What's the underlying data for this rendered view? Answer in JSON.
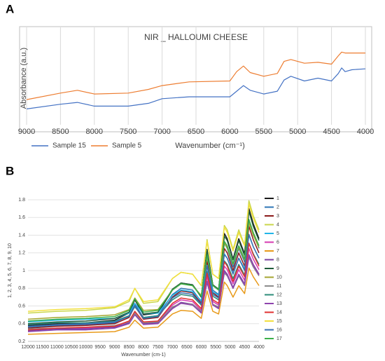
{
  "chart_data": [
    {
      "type": "line",
      "panel_label": "A",
      "title": "NIR _ HALLOUMI CHEESE",
      "xlabel": "Wavenumber (cm⁻¹)",
      "ylabel": "Absorbance (a.u.)",
      "x": [
        9000,
        8500,
        8250,
        8000,
        7500,
        7200,
        7000,
        6600,
        6000,
        5900,
        5800,
        5700,
        5500,
        5300,
        5200,
        5100,
        4900,
        4700,
        4500,
        4400,
        4350,
        4300,
        4200,
        4000
      ],
      "xlim": [
        9000,
        4000
      ],
      "xticks": [
        9000,
        8500,
        8000,
        7500,
        7000,
        6500,
        6000,
        5500,
        5000,
        4500,
        4000
      ],
      "ylim": [
        0,
        1
      ],
      "grid": true,
      "legend": "bottom",
      "series": [
        {
          "name": "Sample 15",
          "color": "#4472c4",
          "values": [
            0.17,
            0.22,
            0.24,
            0.2,
            0.2,
            0.23,
            0.28,
            0.3,
            0.3,
            0.36,
            0.42,
            0.37,
            0.33,
            0.36,
            0.48,
            0.52,
            0.47,
            0.5,
            0.47,
            0.55,
            0.61,
            0.57,
            0.59,
            0.6
          ]
        },
        {
          "name": "Sample 5",
          "color": "#ed7d31",
          "values": [
            0.27,
            0.34,
            0.37,
            0.33,
            0.34,
            0.38,
            0.42,
            0.46,
            0.47,
            0.57,
            0.63,
            0.56,
            0.52,
            0.55,
            0.68,
            0.7,
            0.66,
            0.67,
            0.65,
            0.74,
            0.78,
            0.77,
            0.77,
            0.77
          ]
        }
      ]
    },
    {
      "type": "line",
      "panel_label": "B",
      "xlabel": "Wavenumber (cm-1)",
      "ylabel": "1, 2, 3, 4, 5, 6, 7, 8, 9, 10",
      "x": [
        12000,
        11000,
        10000,
        9000,
        8500,
        8300,
        8000,
        7500,
        7000,
        6700,
        6300,
        6000,
        5800,
        5600,
        5400,
        5200,
        5100,
        4900,
        4700,
        4500,
        4350,
        4200,
        4000
      ],
      "xlim": [
        12000,
        4000
      ],
      "xticks": [
        12000,
        11500,
        11000,
        10500,
        10000,
        9500,
        9000,
        8500,
        8000,
        7500,
        7000,
        6500,
        6000,
        5500,
        5000,
        4500,
        4000
      ],
      "ylim": [
        0.2,
        1.8
      ],
      "yticks": [
        0.2,
        0.4,
        0.6,
        0.8,
        1,
        1.2,
        1.4,
        1.6,
        1.8
      ],
      "grid": true,
      "legend": "right",
      "series": [
        {
          "name": "1",
          "color": "#1a1a1a",
          "values": [
            0.38,
            0.4,
            0.41,
            0.44,
            0.52,
            0.67,
            0.5,
            0.52,
            0.78,
            0.86,
            0.84,
            0.7,
            1.24,
            0.84,
            0.78,
            1.42,
            1.36,
            1.13,
            1.36,
            1.19,
            1.7,
            1.53,
            1.36
          ]
        },
        {
          "name": "2",
          "color": "#2e75b6",
          "values": [
            0.36,
            0.38,
            0.39,
            0.41,
            0.49,
            0.62,
            0.47,
            0.49,
            0.73,
            0.8,
            0.78,
            0.65,
            1.15,
            0.78,
            0.73,
            1.31,
            1.25,
            1.04,
            1.25,
            1.1,
            1.57,
            1.41,
            1.25
          ]
        },
        {
          "name": "3",
          "color": "#8b1a1a",
          "values": [
            0.35,
            0.37,
            0.38,
            0.4,
            0.47,
            0.6,
            0.45,
            0.47,
            0.7,
            0.77,
            0.75,
            0.63,
            1.1,
            0.75,
            0.7,
            1.25,
            1.2,
            1.0,
            1.2,
            1.05,
            1.5,
            1.35,
            1.2
          ]
        },
        {
          "name": "4",
          "color": "#c9d64a",
          "values": [
            0.52,
            0.54,
            0.55,
            0.58,
            0.65,
            0.8,
            0.63,
            0.65,
            0.91,
            0.98,
            0.96,
            0.83,
            1.35,
            0.96,
            0.91,
            1.51,
            1.46,
            1.24,
            1.46,
            1.29,
            1.79,
            1.62,
            1.46
          ]
        },
        {
          "name": "5",
          "color": "#22b5e8",
          "values": [
            0.42,
            0.44,
            0.45,
            0.46,
            0.52,
            0.63,
            0.51,
            0.52,
            0.72,
            0.78,
            0.76,
            0.66,
            1.06,
            0.76,
            0.72,
            1.19,
            1.14,
            0.97,
            1.14,
            1.02,
            1.4,
            1.27,
            1.14
          ]
        },
        {
          "name": "6",
          "color": "#d63ab0",
          "values": [
            0.33,
            0.35,
            0.35,
            0.37,
            0.43,
            0.53,
            0.41,
            0.43,
            0.61,
            0.67,
            0.65,
            0.55,
            0.93,
            0.65,
            0.61,
            1.05,
            1.01,
            0.85,
            1.01,
            0.89,
            1.25,
            1.13,
            1.01
          ]
        },
        {
          "name": "7",
          "color": "#e89a1a",
          "values": [
            0.28,
            0.29,
            0.3,
            0.31,
            0.36,
            0.44,
            0.35,
            0.36,
            0.51,
            0.55,
            0.54,
            0.46,
            0.77,
            0.54,
            0.51,
            0.87,
            0.83,
            0.7,
            0.83,
            0.74,
            1.03,
            0.93,
            0.83
          ]
        },
        {
          "name": "8",
          "color": "#7a3fa0",
          "values": [
            0.32,
            0.34,
            0.34,
            0.36,
            0.41,
            0.51,
            0.4,
            0.41,
            0.58,
            0.64,
            0.62,
            0.53,
            0.88,
            0.62,
            0.58,
            1.0,
            0.96,
            0.81,
            0.96,
            0.85,
            1.18,
            1.07,
            0.96
          ]
        },
        {
          "name": "9",
          "color": "#1f5c3a",
          "values": [
            0.4,
            0.42,
            0.43,
            0.46,
            0.53,
            0.68,
            0.51,
            0.53,
            0.79,
            0.86,
            0.84,
            0.71,
            1.23,
            0.84,
            0.79,
            1.39,
            1.34,
            1.12,
            1.34,
            1.17,
            1.67,
            1.5,
            1.34
          ]
        },
        {
          "name": "10",
          "color": "#a5a530",
          "values": [
            0.45,
            0.47,
            0.48,
            0.5,
            0.56,
            0.69,
            0.55,
            0.56,
            0.78,
            0.85,
            0.83,
            0.72,
            1.16,
            0.83,
            0.78,
            1.31,
            1.26,
            1.07,
            1.26,
            1.12,
            1.54,
            1.4,
            1.26
          ]
        },
        {
          "name": "11",
          "color": "#8c8c8c",
          "values": [
            0.34,
            0.35,
            0.36,
            0.38,
            0.42,
            0.52,
            0.41,
            0.42,
            0.59,
            0.63,
            0.62,
            0.54,
            0.87,
            0.62,
            0.59,
            0.97,
            0.94,
            0.8,
            0.94,
            0.83,
            1.15,
            1.04,
            0.94
          ]
        },
        {
          "name": "12",
          "color": "#2d8c7a",
          "values": [
            0.39,
            0.41,
            0.41,
            0.43,
            0.49,
            0.59,
            0.47,
            0.49,
            0.67,
            0.73,
            0.71,
            0.61,
            0.99,
            0.71,
            0.67,
            1.11,
            1.07,
            0.91,
            1.07,
            0.95,
            1.31,
            1.19,
            1.07
          ]
        },
        {
          "name": "13",
          "color": "#8e44ad",
          "values": [
            0.31,
            0.33,
            0.33,
            0.35,
            0.4,
            0.5,
            0.39,
            0.4,
            0.57,
            0.63,
            0.61,
            0.52,
            0.87,
            0.61,
            0.57,
            0.99,
            0.95,
            0.8,
            0.95,
            0.84,
            1.17,
            1.06,
            0.95
          ]
        },
        {
          "name": "14",
          "color": "#e03030",
          "values": [
            0.33,
            0.35,
            0.36,
            0.37,
            0.43,
            0.54,
            0.42,
            0.43,
            0.63,
            0.69,
            0.67,
            0.57,
            0.97,
            0.67,
            0.63,
            1.1,
            1.05,
            0.88,
            1.05,
            0.93,
            1.31,
            1.18,
            1.05
          ]
        },
        {
          "name": "15",
          "color": "#f2e040",
          "values": [
            0.54,
            0.56,
            0.57,
            0.59,
            0.67,
            0.8,
            0.65,
            0.67,
            0.91,
            0.98,
            0.96,
            0.83,
            1.33,
            0.96,
            0.91,
            1.49,
            1.43,
            1.22,
            1.43,
            1.28,
            1.75,
            1.59,
            1.43
          ]
        },
        {
          "name": "16",
          "color": "#3a6fb0",
          "values": [
            0.37,
            0.39,
            0.4,
            0.42,
            0.48,
            0.6,
            0.46,
            0.48,
            0.69,
            0.75,
            0.73,
            0.62,
            1.05,
            0.73,
            0.69,
            1.18,
            1.14,
            0.96,
            1.14,
            1.0,
            1.41,
            1.27,
            1.14
          ]
        },
        {
          "name": "17",
          "color": "#3cb04a",
          "values": [
            0.43,
            0.45,
            0.46,
            0.48,
            0.55,
            0.68,
            0.53,
            0.55,
            0.78,
            0.85,
            0.83,
            0.71,
            1.18,
            0.83,
            0.78,
            1.33,
            1.28,
            1.08,
            1.28,
            1.13,
            1.58,
            1.43,
            1.28
          ]
        }
      ]
    }
  ]
}
